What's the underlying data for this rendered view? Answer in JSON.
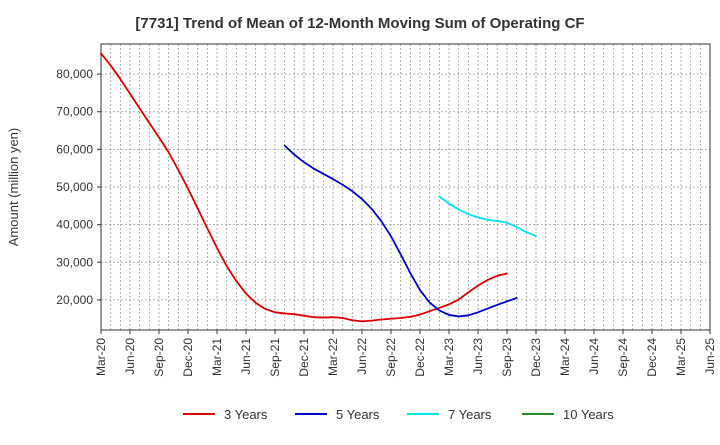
{
  "chart_data": {
    "type": "line",
    "title": "[7731]  Trend of Mean of 12-Month Moving Sum of Operating CF",
    "xlabel": "",
    "ylabel": "Amount (million yen)",
    "ylim": [
      12000,
      88000
    ],
    "yticks": [
      20000,
      30000,
      40000,
      50000,
      60000,
      70000,
      80000
    ],
    "ytick_labels": [
      "20,000",
      "30,000",
      "40,000",
      "50,000",
      "60,000",
      "70,000",
      "80,000"
    ],
    "x_tick_labels": [
      "Mar-20",
      "Jun-20",
      "Sep-20",
      "Dec-20",
      "Mar-21",
      "Jun-21",
      "Sep-21",
      "Dec-21",
      "Mar-22",
      "Jun-22",
      "Sep-22",
      "Dec-22",
      "Mar-23",
      "Jun-23",
      "Sep-23",
      "Dec-23",
      "Mar-24",
      "Jun-24",
      "Sep-24",
      "Dec-24",
      "Mar-25",
      "Jun-25"
    ],
    "grid": true,
    "legend_position": "bottom",
    "series": [
      {
        "name": "3 Years",
        "color": "#dd0000",
        "start_index": 0,
        "values": [
          85500,
          82300,
          78700,
          74800,
          70900,
          67000,
          63200,
          59200,
          54500,
          49600,
          44300,
          39000,
          33800,
          29000,
          25000,
          21700,
          19200,
          17600,
          16700,
          16400,
          16200,
          15800,
          15400,
          15300,
          15400,
          15200,
          14600,
          14300,
          14500,
          14800,
          15000,
          15200,
          15500,
          16100,
          17000,
          17900,
          18800,
          20100,
          22000,
          23800,
          25300,
          26400,
          27000
        ]
      },
      {
        "name": "5 Years",
        "color": "#0000cc",
        "start_index": 19,
        "values": [
          61000,
          58600,
          56600,
          54900,
          53500,
          52100,
          50600,
          48900,
          46800,
          44200,
          40900,
          36900,
          32100,
          27100,
          22600,
          19300,
          17200,
          16000,
          15600,
          15900,
          16700,
          17700,
          18700,
          19600,
          20500
        ]
      },
      {
        "name": "7 Years",
        "color": "#00e5ee",
        "start_index": 35,
        "values": [
          47500,
          45600,
          44000,
          42800,
          41900,
          41300,
          41000,
          40500,
          39400,
          38000,
          37000
        ]
      },
      {
        "name": "10 Years",
        "color": "#228b22",
        "start_index": 0,
        "values": []
      }
    ]
  }
}
